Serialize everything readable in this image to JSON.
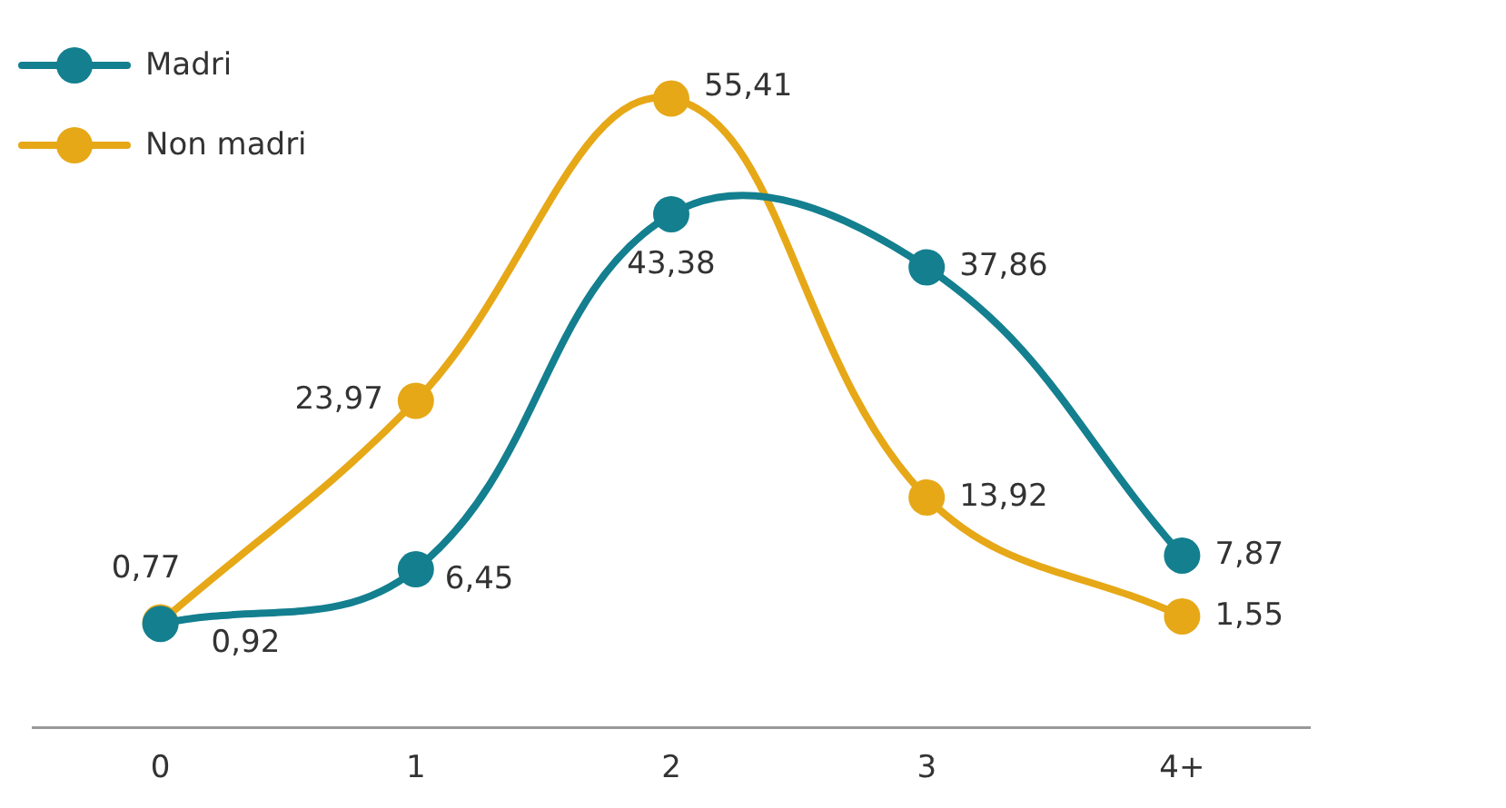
{
  "chart_data": {
    "type": "line",
    "categories": [
      "0",
      "1",
      "2",
      "3",
      "4+"
    ],
    "series": [
      {
        "name": "Madri",
        "color": "#137f8f",
        "values": [
          0.77,
          6.45,
          43.38,
          37.86,
          7.87
        ],
        "value_labels": [
          "0,77",
          "6,45",
          "43,38",
          "37,86",
          "7,87"
        ]
      },
      {
        "name": "Non madri",
        "color": "#e6a817",
        "values": [
          0.92,
          23.97,
          55.41,
          13.92,
          1.55
        ],
        "value_labels": [
          "0,92",
          "23,97",
          "55,41",
          "13,92",
          "1,55"
        ]
      }
    ],
    "legend": "top left",
    "marker": "circle",
    "line_style": "solid",
    "grid": false,
    "tick_labels": "x"
  }
}
